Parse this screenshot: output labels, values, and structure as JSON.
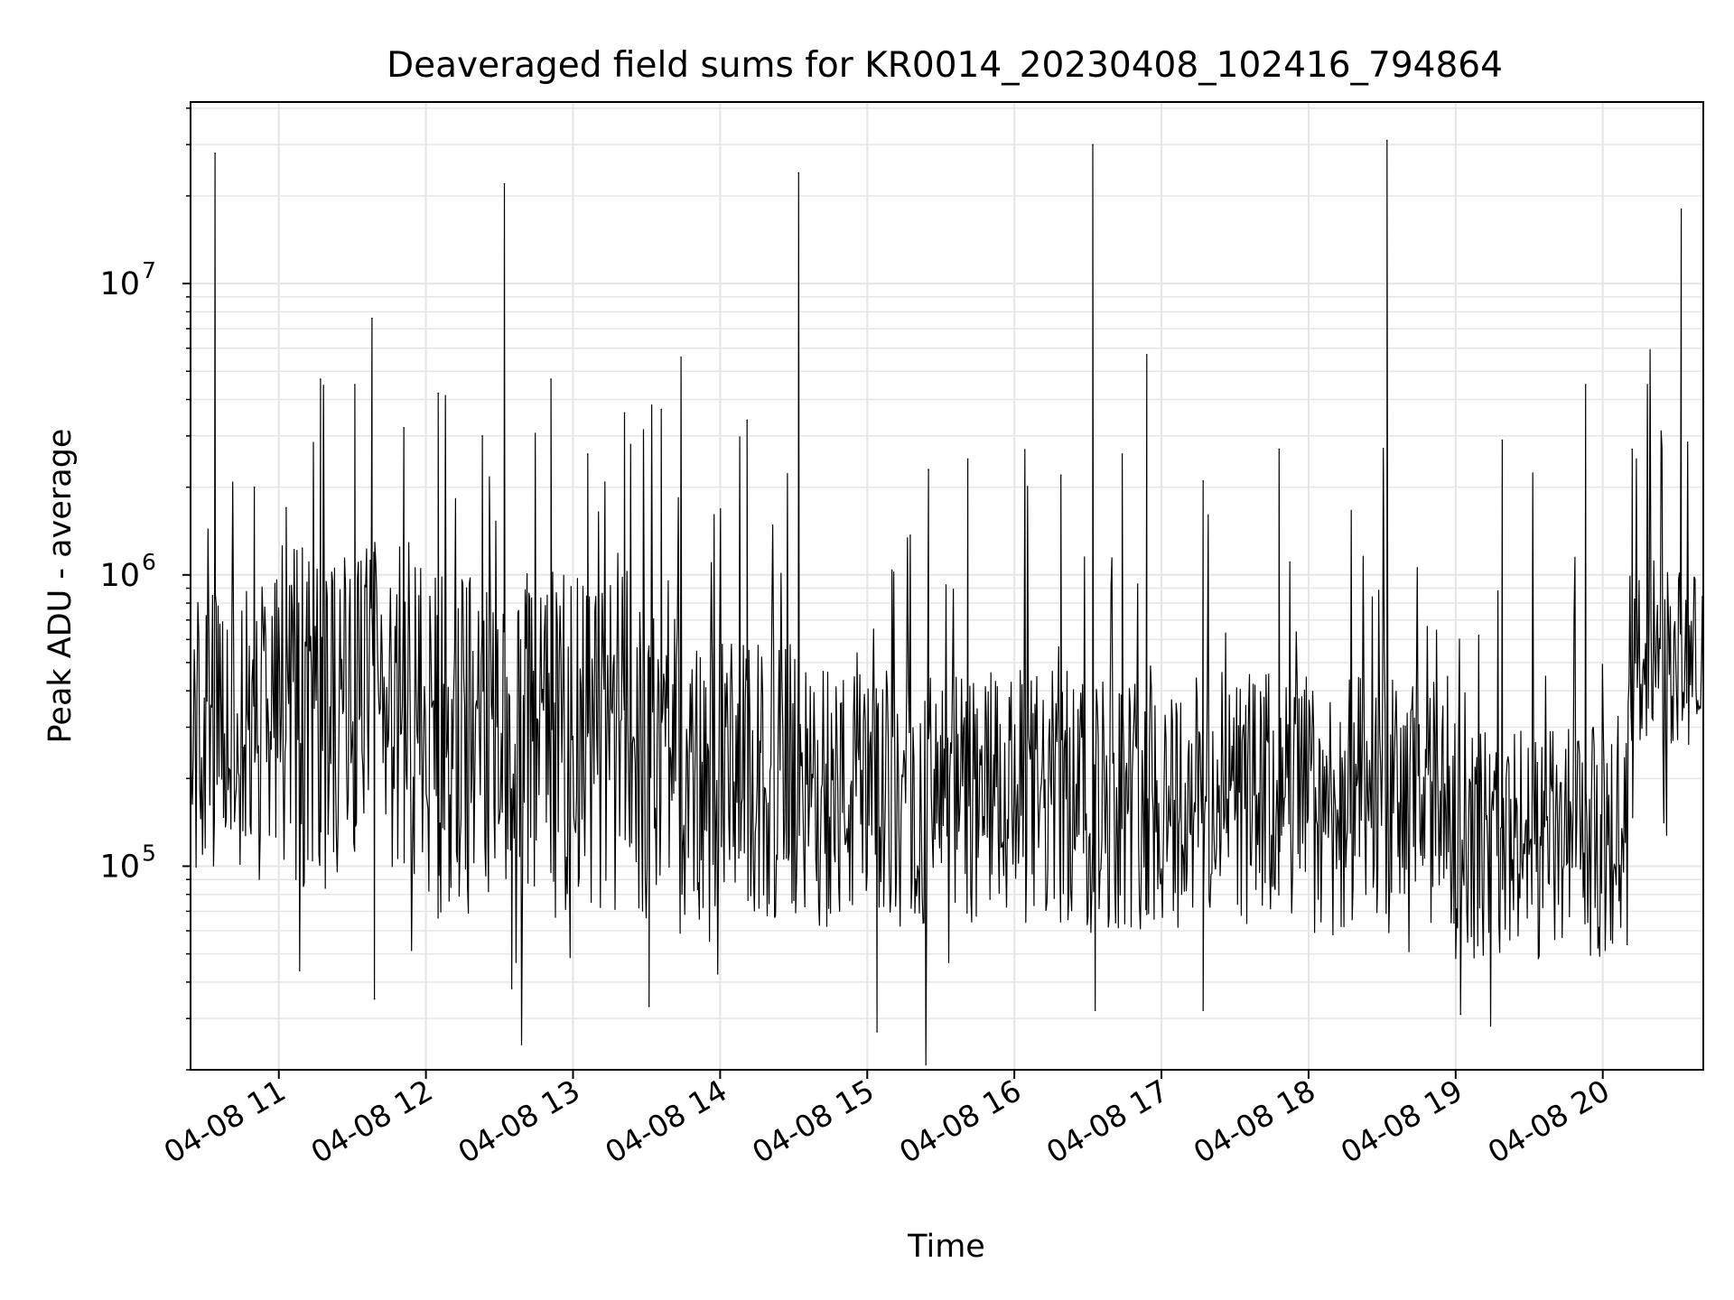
{
  "chart_data": {
    "type": "line",
    "title": "Deaveraged field sums for KR0014_20230408_102416_794864",
    "xlabel": "Time",
    "ylabel": "Peak ADU - average",
    "yscale": "log",
    "grid": true,
    "line_color": "#000000",
    "grid_color": "#e5e5e5",
    "xlim": [
      "2023-04-08 10:24",
      "2023-04-08 20:41"
    ],
    "ylim": [
      20000,
      42000000
    ],
    "x_ticks": [
      "04-08 11",
      "04-08 12",
      "04-08 13",
      "04-08 14",
      "04-08 15",
      "04-08 16",
      "04-08 17",
      "04-08 18",
      "04-08 19",
      "04-08 20"
    ],
    "x_tick_values": [
      "2023-04-08 11:00",
      "2023-04-08 12:00",
      "2023-04-08 13:00",
      "2023-04-08 14:00",
      "2023-04-08 15:00",
      "2023-04-08 16:00",
      "2023-04-08 17:00",
      "2023-04-08 18:00",
      "2023-04-08 19:00",
      "2023-04-08 20:00"
    ],
    "y_ticks": [
      {
        "value": 100000,
        "base": "10",
        "exp": "5"
      },
      {
        "value": 1000000,
        "base": "10",
        "exp": "6"
      },
      {
        "value": 10000000,
        "base": "10",
        "exp": "7"
      }
    ],
    "baseline_segments": [
      {
        "start": "2023-04-08 10:24",
        "end": "2023-04-08 10:50",
        "level": 280000,
        "spread": 0.5
      },
      {
        "start": "2023-04-08 10:50",
        "end": "2023-04-08 12:00",
        "level": 330000,
        "spread": 0.6
      },
      {
        "start": "2023-04-08 12:00",
        "end": "2023-04-08 13:45",
        "level": 260000,
        "spread": 0.6
      },
      {
        "start": "2023-04-08 13:45",
        "end": "2023-04-08 14:30",
        "level": 190000,
        "spread": 0.5
      },
      {
        "start": "2023-04-08 14:30",
        "end": "2023-04-08 18:00",
        "level": 170000,
        "spread": 0.45
      },
      {
        "start": "2023-04-08 18:00",
        "end": "2023-04-08 19:00",
        "level": 160000,
        "spread": 0.45
      },
      {
        "start": "2023-04-08 19:00",
        "end": "2023-04-08 20:10",
        "level": 120000,
        "spread": 0.4
      },
      {
        "start": "2023-04-08 20:10",
        "end": "2023-04-08 20:41",
        "level": 520000,
        "spread": 0.3
      }
    ],
    "spikes": [
      {
        "x": "2023-04-08 10:34",
        "y": 28000000
      },
      {
        "x": "2023-04-08 10:50",
        "y": 2000000
      },
      {
        "x": "2023-04-08 11:03",
        "y": 1700000
      },
      {
        "x": "2023-04-08 11:17",
        "y": 4700000
      },
      {
        "x": "2023-04-08 11:31",
        "y": 4500000
      },
      {
        "x": "2023-04-08 11:38",
        "y": 7600000
      },
      {
        "x": "2023-04-08 11:51",
        "y": 3200000
      },
      {
        "x": "2023-04-08 12:05",
        "y": 4200000
      },
      {
        "x": "2023-04-08 12:23",
        "y": 3000000
      },
      {
        "x": "2023-04-08 12:32",
        "y": 22000000
      },
      {
        "x": "2023-04-08 12:51",
        "y": 4700000
      },
      {
        "x": "2023-04-08 13:06",
        "y": 2600000
      },
      {
        "x": "2023-04-08 13:21",
        "y": 3600000
      },
      {
        "x": "2023-04-08 13:36",
        "y": 3700000
      },
      {
        "x": "2023-04-08 14:11",
        "y": 3400000
      },
      {
        "x": "2023-04-08 14:32",
        "y": 24000000
      },
      {
        "x": "2023-04-08 15:25",
        "y": 2300000
      },
      {
        "x": "2023-04-08 15:41",
        "y": 2500000
      },
      {
        "x": "2023-04-08 16:19",
        "y": 2200000
      },
      {
        "x": "2023-04-08 16:32",
        "y": 30000000
      },
      {
        "x": "2023-04-08 16:44",
        "y": 2600000
      },
      {
        "x": "2023-04-08 16:54",
        "y": 5700000
      },
      {
        "x": "2023-04-08 17:17",
        "y": 2100000
      },
      {
        "x": "2023-04-08 17:48",
        "y": 2700000
      },
      {
        "x": "2023-04-08 18:32",
        "y": 31000000
      },
      {
        "x": "2023-04-08 19:19",
        "y": 2900000
      },
      {
        "x": "2023-04-08 19:53",
        "y": 4500000
      },
      {
        "x": "2023-04-08 20:12",
        "y": 2700000
      },
      {
        "x": "2023-04-08 20:32",
        "y": 18000000
      }
    ],
    "dips": [
      {
        "x": "2023-04-08 11:39",
        "y": 35000
      },
      {
        "x": "2023-04-08 12:35",
        "y": 38000
      },
      {
        "x": "2023-04-08 13:31",
        "y": 33000
      },
      {
        "x": "2023-04-08 15:04",
        "y": 27000
      },
      {
        "x": "2023-04-08 16:33",
        "y": 32000
      },
      {
        "x": "2023-04-08 17:17",
        "y": 32000
      },
      {
        "x": "2023-04-08 19:02",
        "y": 31000
      }
    ]
  }
}
